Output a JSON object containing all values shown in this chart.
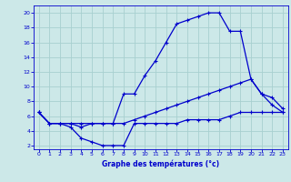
{
  "title": "Graphe des températures (°c)",
  "bg_color": "#cce8e8",
  "grid_color": "#a8d0d0",
  "line_color": "#0000cc",
  "x_ticks": [
    0,
    1,
    2,
    3,
    4,
    5,
    6,
    7,
    8,
    9,
    10,
    11,
    12,
    13,
    14,
    15,
    16,
    17,
    18,
    19,
    20,
    21,
    22,
    23
  ],
  "y_ticks": [
    2,
    4,
    6,
    8,
    10,
    12,
    14,
    16,
    18,
    20
  ],
  "xlim": [
    -0.5,
    23.5
  ],
  "ylim": [
    1.5,
    21.0
  ],
  "line1_x": [
    0,
    1,
    2,
    3,
    4,
    5,
    6,
    7,
    8,
    9,
    10,
    11,
    12,
    13,
    14,
    15,
    16,
    17,
    18,
    19,
    20,
    21,
    22,
    23
  ],
  "line1_y": [
    6.5,
    5.0,
    5.0,
    5.0,
    5.0,
    5.0,
    5.0,
    5.0,
    9.0,
    9.0,
    11.5,
    13.5,
    16.0,
    18.5,
    19.0,
    19.5,
    20.0,
    20.0,
    17.5,
    17.5,
    11.0,
    9.0,
    7.5,
    6.5
  ],
  "line2_x": [
    0,
    1,
    2,
    3,
    4,
    5,
    6,
    7,
    8,
    9,
    10,
    11,
    12,
    13,
    14,
    15,
    16,
    17,
    18,
    19,
    20,
    21,
    22,
    23
  ],
  "line2_y": [
    6.5,
    5.0,
    5.0,
    5.0,
    4.5,
    5.0,
    5.0,
    5.0,
    5.0,
    5.5,
    6.0,
    6.5,
    7.0,
    7.5,
    8.0,
    8.5,
    9.0,
    9.5,
    10.0,
    10.5,
    11.0,
    9.0,
    8.5,
    7.0
  ],
  "line3_x": [
    0,
    1,
    2,
    3,
    4,
    5,
    6,
    7,
    8,
    9,
    10,
    11,
    12,
    13,
    14,
    15,
    16,
    17,
    18,
    19,
    20,
    21,
    22,
    23
  ],
  "line3_y": [
    6.5,
    5.0,
    5.0,
    4.5,
    3.0,
    2.5,
    2.0,
    2.0,
    2.0,
    5.0,
    5.0,
    5.0,
    5.0,
    5.0,
    5.5,
    5.5,
    5.5,
    5.5,
    6.0,
    6.5,
    6.5,
    6.5,
    6.5,
    6.5
  ]
}
